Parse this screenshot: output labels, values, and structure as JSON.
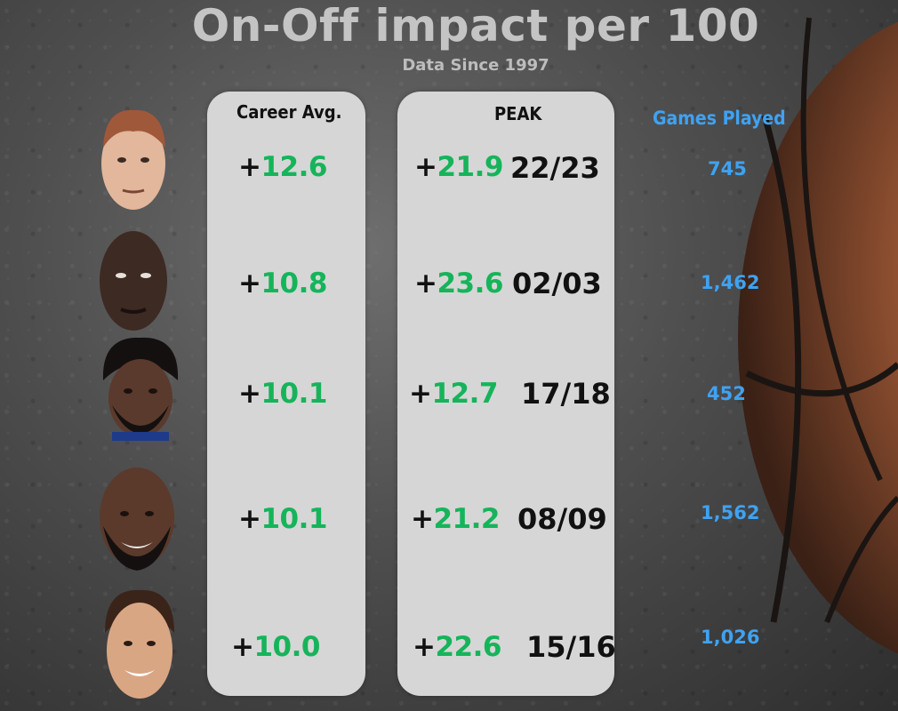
{
  "title": "On-Off impact per 100",
  "subtitle": "Data Since 1997",
  "colors": {
    "positive": "#16b45a",
    "games": "#3fa2f2",
    "panel": "#d6d6d6"
  },
  "chart_data": {
    "type": "table",
    "title": "On-Off impact per 100",
    "subtitle": "Data Since 1997",
    "columns": [
      "Career Avg.",
      "PEAK",
      "Games Played"
    ],
    "rows": [
      {
        "career_sign": "+",
        "career": "12.6",
        "peak_sign": "+",
        "peak": "21.9",
        "peak_season": "22/23",
        "games": "745"
      },
      {
        "career_sign": "+",
        "career": "10.8",
        "peak_sign": "+",
        "peak": "23.6",
        "peak_season": "02/03",
        "games": "1,462"
      },
      {
        "career_sign": "+",
        "career": "10.1",
        "peak_sign": "+",
        "peak": "12.7",
        "peak_season": "17/18",
        "games": "452"
      },
      {
        "career_sign": "+",
        "career": "10.1",
        "peak_sign": "+",
        "peak": "21.2",
        "peak_season": "08/09",
        "games": "1,562"
      },
      {
        "career_sign": "+",
        "career": "10.0",
        "peak_sign": "+",
        "peak": "22.6",
        "peak_season": "15/16",
        "games": "1,026"
      }
    ]
  }
}
